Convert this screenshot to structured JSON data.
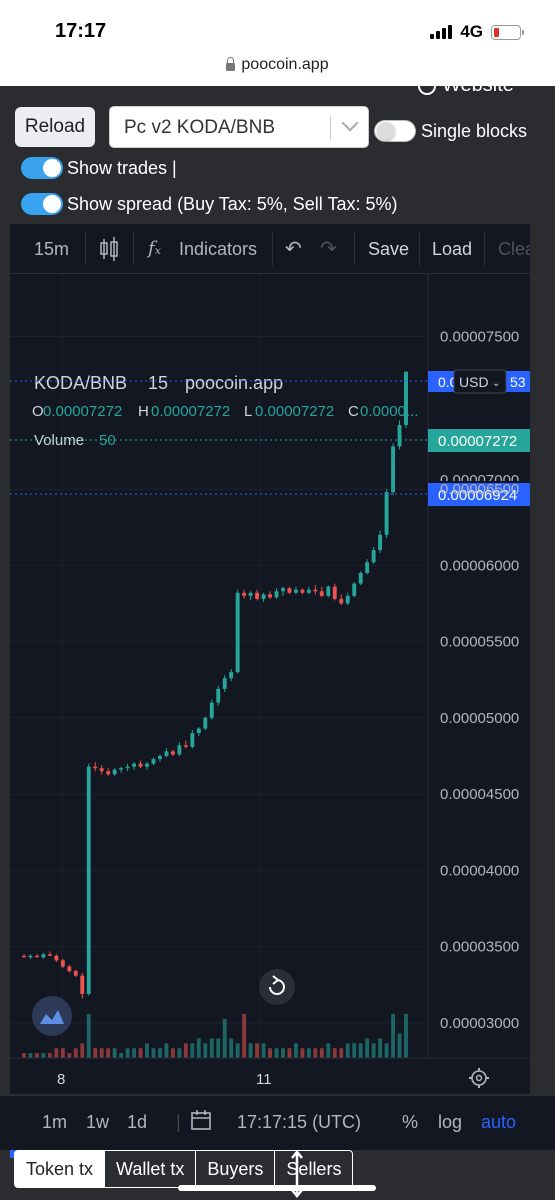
{
  "status_bar": {
    "time": "17:17",
    "network": "4G"
  },
  "browser": {
    "url": "poocoin.app"
  },
  "page": {
    "website_link": "Website",
    "reload_label": "Reload",
    "pair_select": "Pc v2 KODA/BNB",
    "single_blocks_label": "Single blocks",
    "show_trades_label": "Show trades |",
    "show_spread_label": "Show spread (Buy Tax: 5%, Sell Tax: 5%)"
  },
  "toolbar": {
    "interval": "15m",
    "indicators": "Indicators",
    "save": "Save",
    "load": "Load",
    "clear": "Clea"
  },
  "legend": {
    "symbol": "KODA/BNB",
    "interval": "15",
    "source": "poocoin.app",
    "open_label": "O",
    "open": "0.00007272",
    "high_label": "H",
    "high": "0.00007272",
    "low_label": "L",
    "low": "0.00007272",
    "close_label": "C",
    "close": "0.0000...",
    "volume_label": "Volume",
    "volume": "50"
  },
  "price_scale": {
    "currency": "USD",
    "top_tag": "0.0",
    "top_tag_tail": "53",
    "current_price": "0.00007272",
    "spread_price": "0.00006924",
    "hidden_label": "0.00007000"
  },
  "colors": {
    "up": "#26a69a",
    "down": "#ef5350",
    "current_tag": "#26a69a",
    "spread_tag": "#2962ff"
  },
  "chart_data": {
    "type": "candlestick",
    "y_ticks": [
      "0.00007500",
      "0.00006500",
      "0.00006000",
      "0.00005500",
      "0.00005000",
      "0.00004500",
      "0.00004000",
      "0.00003500",
      "0.00003000"
    ],
    "x_ticks": [
      "8",
      "11"
    ],
    "ylim": [
      2.77e-05,
      7.91e-05
    ],
    "candles": [
      [
        3.44e-05,
        3.45e-05,
        3.43e-05,
        3.43e-05
      ],
      [
        3.43e-05,
        3.45e-05,
        3.42e-05,
        3.44e-05
      ],
      [
        3.44e-05,
        3.45e-05,
        3.43e-05,
        3.43e-05
      ],
      [
        3.43e-05,
        3.46e-05,
        3.42e-05,
        3.45e-05
      ],
      [
        3.45e-05,
        3.47e-05,
        3.44e-05,
        3.44e-05
      ],
      [
        3.44e-05,
        3.45e-05,
        3.4e-05,
        3.41e-05
      ],
      [
        3.41e-05,
        3.42e-05,
        3.36e-05,
        3.37e-05
      ],
      [
        3.37e-05,
        3.38e-05,
        3.33e-05,
        3.34e-05
      ],
      [
        3.34e-05,
        3.35e-05,
        3.3e-05,
        3.31e-05
      ],
      [
        3.31e-05,
        3.33e-05,
        3.16e-05,
        3.19e-05
      ],
      [
        3.19e-05,
        4.7e-05,
        3.18e-05,
        4.68e-05
      ],
      [
        4.68e-05,
        4.71e-05,
        4.65e-05,
        4.67e-05
      ],
      [
        4.67e-05,
        4.69e-05,
        4.63e-05,
        4.65e-05
      ],
      [
        4.65e-05,
        4.67e-05,
        4.62e-05,
        4.63e-05
      ],
      [
        4.63e-05,
        4.67e-05,
        4.62e-05,
        4.66e-05
      ],
      [
        4.66e-05,
        4.68e-05,
        4.64e-05,
        4.67e-05
      ],
      [
        4.67e-05,
        4.7e-05,
        4.65e-05,
        4.68e-05
      ],
      [
        4.68e-05,
        4.71e-05,
        4.66e-05,
        4.7e-05
      ],
      [
        4.7e-05,
        4.72e-05,
        4.67e-05,
        4.68e-05
      ],
      [
        4.68e-05,
        4.71e-05,
        4.66e-05,
        4.7e-05
      ],
      [
        4.7e-05,
        4.74e-05,
        4.69e-05,
        4.73e-05
      ],
      [
        4.73e-05,
        4.76e-05,
        4.71e-05,
        4.75e-05
      ],
      [
        4.75e-05,
        4.8e-05,
        4.74e-05,
        4.78e-05
      ],
      [
        4.78e-05,
        4.79e-05,
        4.75e-05,
        4.76e-05
      ],
      [
        4.76e-05,
        4.84e-05,
        4.75e-05,
        4.82e-05
      ],
      [
        4.82e-05,
        4.85e-05,
        4.8e-05,
        4.81e-05
      ],
      [
        4.81e-05,
        4.92e-05,
        4.8e-05,
        4.9e-05
      ],
      [
        4.9e-05,
        4.94e-05,
        4.88e-05,
        4.93e-05
      ],
      [
        4.93e-05,
        5.01e-05,
        4.92e-05,
        5e-05
      ],
      [
        5e-05,
        5.12e-05,
        4.99e-05,
        5.1e-05
      ],
      [
        5.1e-05,
        5.21e-05,
        5.08e-05,
        5.19e-05
      ],
      [
        5.19e-05,
        5.28e-05,
        5.17e-05,
        5.26e-05
      ],
      [
        5.26e-05,
        5.32e-05,
        5.24e-05,
        5.3e-05
      ],
      [
        5.3e-05,
        5.84e-05,
        5.29e-05,
        5.82e-05
      ],
      [
        5.82e-05,
        5.84e-05,
        5.78e-05,
        5.8e-05
      ],
      [
        5.8e-05,
        5.83e-05,
        5.77e-05,
        5.82e-05
      ],
      [
        5.82e-05,
        5.84e-05,
        5.77e-05,
        5.78e-05
      ],
      [
        5.78e-05,
        5.82e-05,
        5.76e-05,
        5.81e-05
      ],
      [
        5.81e-05,
        5.83e-05,
        5.78e-05,
        5.79e-05
      ],
      [
        5.79e-05,
        5.85e-05,
        5.78e-05,
        5.83e-05
      ],
      [
        5.83e-05,
        5.86e-05,
        5.8e-05,
        5.85e-05
      ],
      [
        5.85e-05,
        5.86e-05,
        5.81e-05,
        5.82e-05
      ],
      [
        5.82e-05,
        5.86e-05,
        5.81e-05,
        5.84e-05
      ],
      [
        5.84e-05,
        5.85e-05,
        5.81e-05,
        5.82e-05
      ],
      [
        5.82e-05,
        5.86e-05,
        5.81e-05,
        5.84e-05
      ],
      [
        5.84e-05,
        5.87e-05,
        5.81e-05,
        5.83e-05
      ],
      [
        5.83e-05,
        5.86e-05,
        5.79e-05,
        5.8e-05
      ],
      [
        5.8e-05,
        5.87e-05,
        5.79e-05,
        5.86e-05
      ],
      [
        5.86e-05,
        5.88e-05,
        5.77e-05,
        5.78e-05
      ],
      [
        5.78e-05,
        5.81e-05,
        5.74e-05,
        5.75e-05
      ],
      [
        5.75e-05,
        5.82e-05,
        5.74e-05,
        5.8e-05
      ],
      [
        5.8e-05,
        5.89e-05,
        5.79e-05,
        5.88e-05
      ],
      [
        5.88e-05,
        5.96e-05,
        5.87e-05,
        5.95e-05
      ],
      [
        5.95e-05,
        6.04e-05,
        5.94e-05,
        6.02e-05
      ],
      [
        6.02e-05,
        6.12e-05,
        6.01e-05,
        6.1e-05
      ],
      [
        6.1e-05,
        6.23e-05,
        6.08e-05,
        6.2e-05
      ],
      [
        6.2e-05,
        6.5e-05,
        6.18e-05,
        6.48e-05
      ],
      [
        6.48e-05,
        6.8e-05,
        6.46e-05,
        6.78e-05
      ],
      [
        6.78e-05,
        6.95e-05,
        6.76e-05,
        6.92e-05
      ],
      [
        6.92e-05,
        7.27e-05,
        6.9e-05,
        7.27e-05
      ]
    ],
    "volumes": [
      1,
      1,
      1,
      1,
      1,
      2,
      2,
      1,
      2,
      3,
      9,
      2,
      2,
      2,
      2,
      1,
      2,
      2,
      2,
      3,
      2,
      2,
      3,
      2,
      2,
      3,
      3,
      4,
      3,
      4,
      4,
      8,
      4,
      3,
      9,
      3,
      3,
      3,
      2,
      2,
      2,
      2,
      3,
      2,
      2,
      2,
      2,
      3,
      2,
      2,
      3,
      3,
      3,
      4,
      3,
      4,
      3,
      9,
      5,
      9
    ]
  },
  "bottom_bar": {
    "intervals": [
      "1m",
      "1w",
      "1d"
    ],
    "time": "17:17:15 (UTC)",
    "percent": "%",
    "log": "log",
    "auto": "auto"
  },
  "tabs": [
    "Token tx",
    "Wallet tx",
    "Buyers",
    "Sellers"
  ]
}
